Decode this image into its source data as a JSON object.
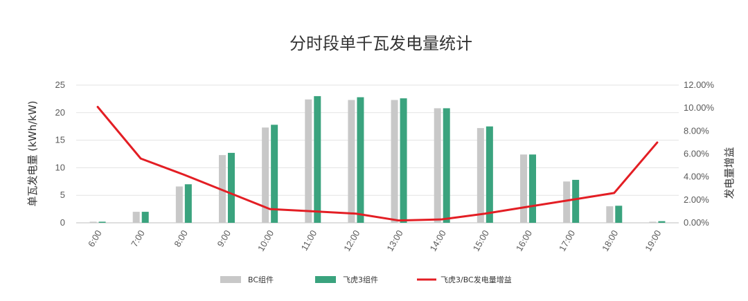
{
  "chart_data": {
    "type": "bar",
    "title": "分时段单千瓦发电量统计",
    "ylabel": "单瓦发电量 (kWh/kW)",
    "y2label": "发电量增益",
    "categories": [
      "6:00",
      "7:00",
      "8:00",
      "9:00",
      "10:00",
      "11:00",
      "12:00",
      "13:00",
      "14:00",
      "15:00",
      "16:00",
      "17:00",
      "18:00",
      "19:00"
    ],
    "ylim": [
      0,
      25
    ],
    "yticks": [
      "0",
      "5",
      "10",
      "15",
      "20",
      "25"
    ],
    "y2lim": [
      0,
      12
    ],
    "y2ticks": [
      "0.00%",
      "2.00%",
      "4.00%",
      "6.00%",
      "8.00%",
      "10.00%",
      "12.00%"
    ],
    "grid": true,
    "legend_position": "bottom",
    "series": [
      {
        "name": "BC组件",
        "type": "bar",
        "color": "#c8c8c8",
        "values": [
          0.2,
          2.0,
          6.6,
          12.3,
          17.3,
          22.4,
          22.3,
          22.3,
          20.8,
          17.2,
          12.4,
          7.5,
          3.0,
          0.2
        ]
      },
      {
        "name": "飞虎3组件",
        "type": "bar",
        "color": "#3aa37e",
        "values": [
          0.2,
          2.0,
          7.0,
          12.7,
          17.8,
          23.0,
          22.8,
          22.6,
          20.8,
          17.5,
          12.4,
          7.8,
          3.1,
          0.3
        ]
      },
      {
        "name": "飞虎3/BC发电量增益",
        "type": "line",
        "axis": "right",
        "color": "#e31e24",
        "values": [
          10.1,
          5.6,
          4.2,
          2.7,
          1.2,
          1.0,
          0.8,
          0.2,
          0.3,
          0.8,
          1.4,
          2.0,
          2.6,
          7.0
        ]
      }
    ]
  }
}
